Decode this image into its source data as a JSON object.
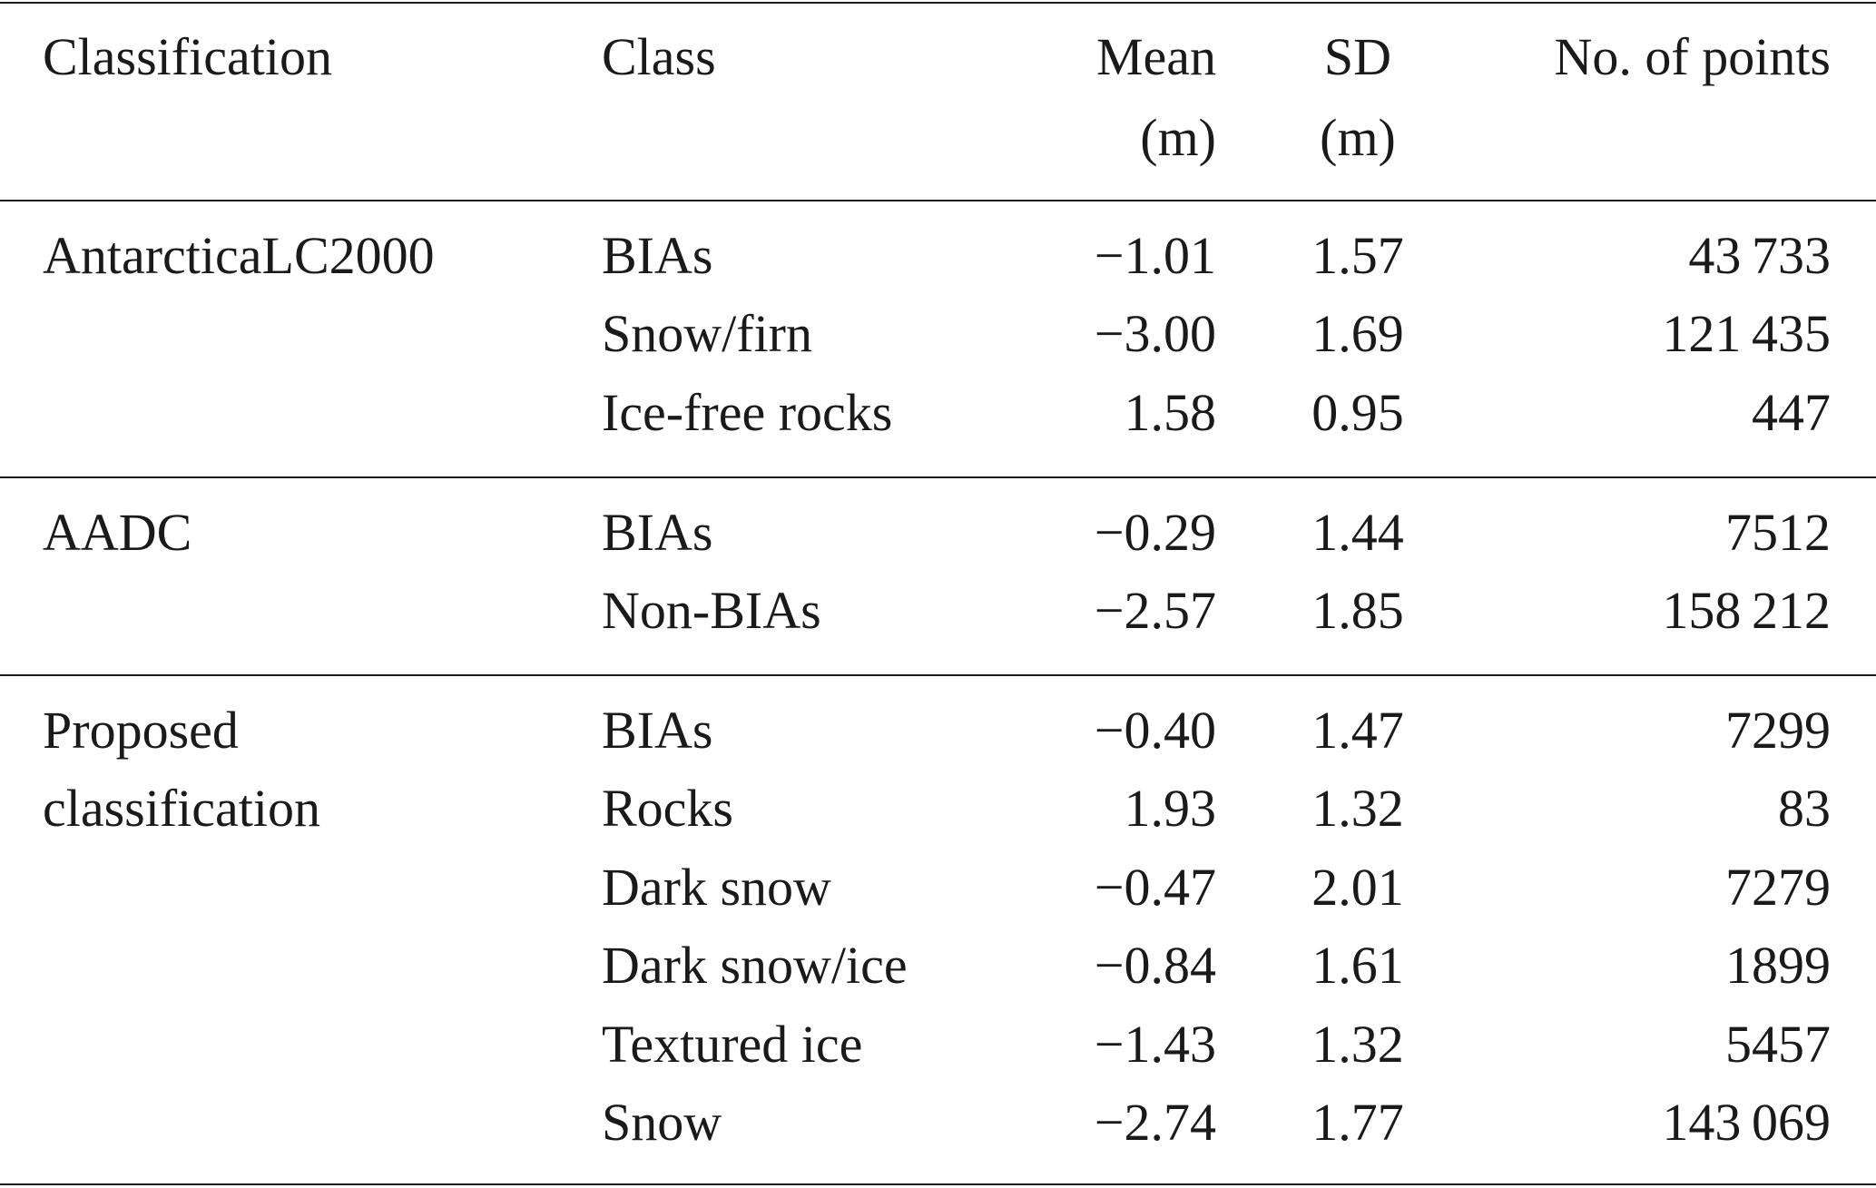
{
  "table": {
    "headers": [
      [
        "Classification",
        ""
      ],
      [
        "Class",
        ""
      ],
      [
        "Mean",
        "(m)"
      ],
      [
        "SD",
        "(m)"
      ],
      [
        "No. of points",
        ""
      ]
    ],
    "groups": [
      {
        "classification": [
          "AntarcticaLC2000"
        ],
        "rows": [
          [
            "BIAs",
            "−1.01",
            "1.57",
            "43 733"
          ],
          [
            "Snow/firn",
            "−3.00",
            "1.69",
            "121 435"
          ],
          [
            "Ice-free rocks",
            "1.58",
            "0.95",
            "447"
          ]
        ]
      },
      {
        "classification": [
          "AADC"
        ],
        "rows": [
          [
            "BIAs",
            "−0.29",
            "1.44",
            "7512"
          ],
          [
            "Non-BIAs",
            "−2.57",
            "1.85",
            "158 212"
          ]
        ]
      },
      {
        "classification": [
          "Proposed",
          "classification"
        ],
        "rows": [
          [
            "BIAs",
            "−0.40",
            "1.47",
            "7299"
          ],
          [
            "Rocks",
            "1.93",
            "1.32",
            "83"
          ],
          [
            "Dark snow",
            "−0.47",
            "2.01",
            "7279"
          ],
          [
            "Dark snow/ice",
            "−0.84",
            "1.61",
            "1899"
          ],
          [
            "Textured ice",
            "−1.43",
            "1.32",
            "5457"
          ],
          [
            "Snow",
            "−2.74",
            "1.77",
            "143 069"
          ]
        ]
      }
    ]
  }
}
